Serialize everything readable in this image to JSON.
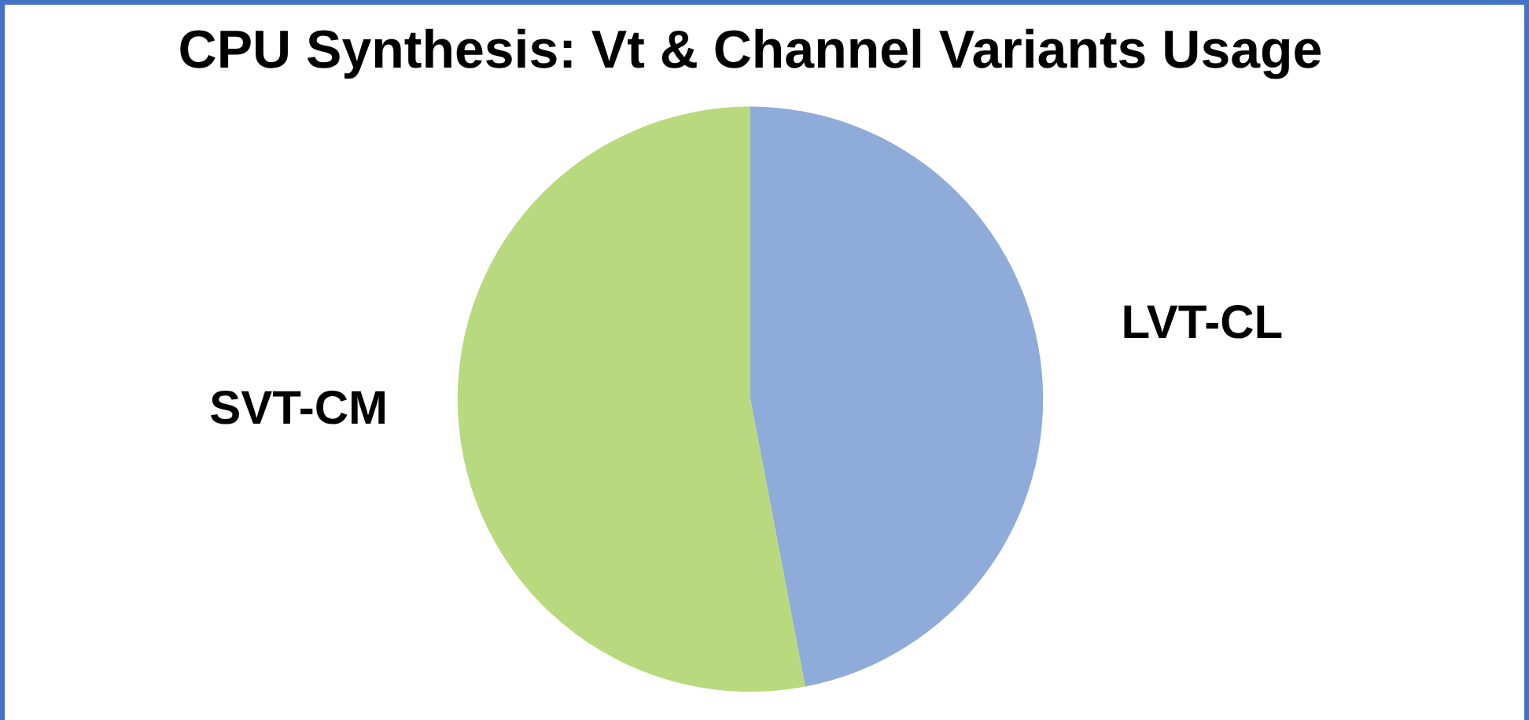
{
  "chart_data": {
    "type": "pie",
    "title": "CPU Synthesis: Vt & Channel Variants Usage",
    "categories": [
      "LVT-CL",
      "SVT-CM"
    ],
    "values": [
      47,
      53
    ],
    "colors": [
      "#8eabd9",
      "#b8d97e"
    ],
    "legend": false
  }
}
